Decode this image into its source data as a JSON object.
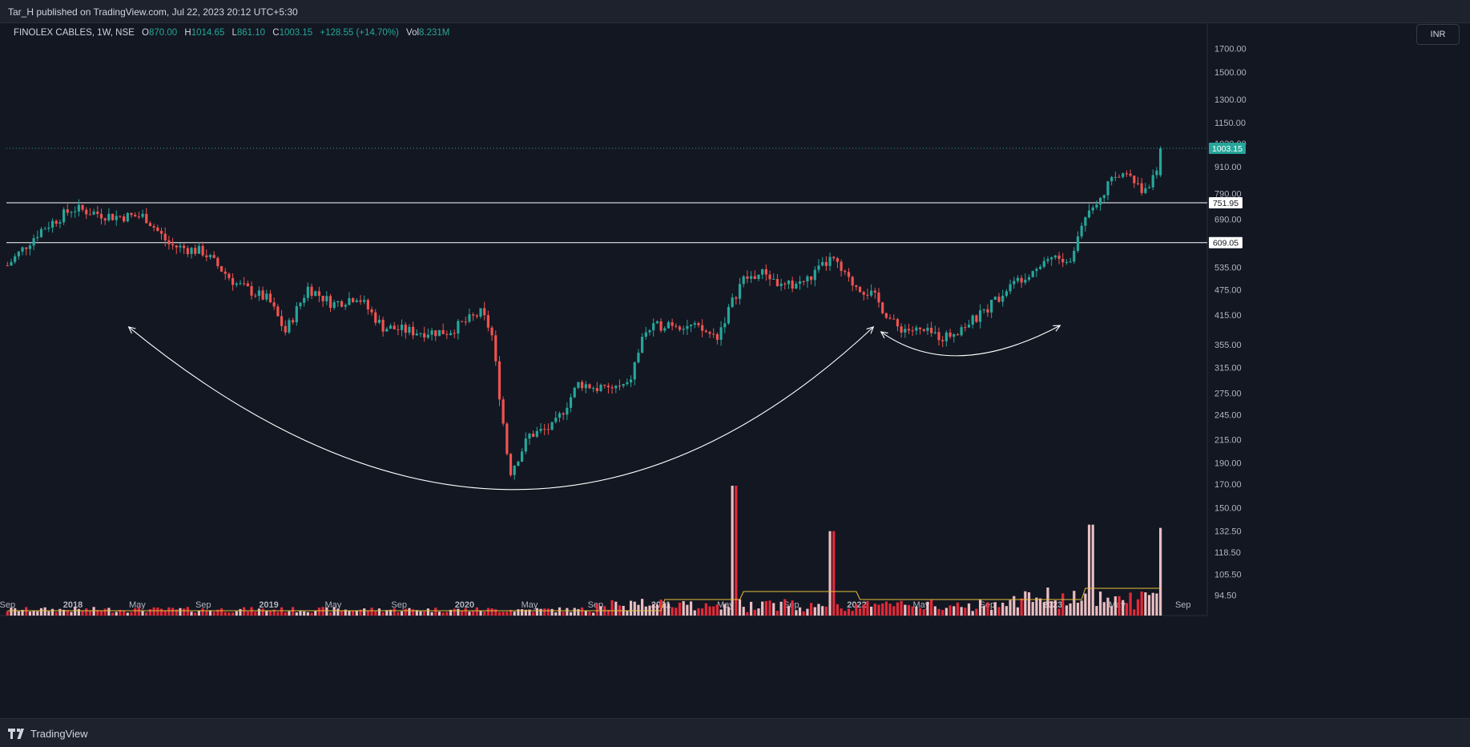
{
  "header": {
    "publish_line": "Tar_H published on TradingView.com, Jul 22, 2023 20:12 UTC+5:30"
  },
  "legend": {
    "symbol": "FINOLEX CABLES, 1W, NSE",
    "open_label": "O",
    "open": "870.00",
    "high_label": "H",
    "high": "1014.65",
    "low_label": "L",
    "low": "861.10",
    "close_label": "C",
    "close": "1003.15",
    "change": "+128.55 (+14.70%)",
    "vol_label": "Vol",
    "vol": "8.231M"
  },
  "currency_button": "INR",
  "footer": {
    "brand": "TradingView",
    "logo_icon": "tradingview-logo-icon"
  },
  "colors": {
    "background": "#131722",
    "up": "#26a69a",
    "down": "#ef5350",
    "volume_up": "#f6c7cb",
    "volume_down": "#ef2b3a",
    "volume_ma": "#e6c23a",
    "annotation": "#ffffff"
  },
  "chart_data": {
    "type": "candlestick",
    "scale": "log",
    "grid": false,
    "y_ticks": [
      "1700.00",
      "1500.00",
      "1300.00",
      "1150.00",
      "1030.00",
      "910.00",
      "790.00",
      "690.00",
      "535.00",
      "475.00",
      "415.00",
      "355.00",
      "315.00",
      "275.00",
      "245.00",
      "215.00",
      "190.00",
      "170.00",
      "150.00",
      "132.50",
      "118.50",
      "105.50",
      "94.50"
    ],
    "x_ticks": [
      "Sep",
      "2018",
      "May",
      "Sep",
      "2019",
      "May",
      "Sep",
      "2020",
      "May",
      "Sep",
      "2021",
      "May",
      "Sep",
      "2022",
      "May",
      "Sep",
      "2023",
      "May",
      "Sep"
    ],
    "levels": [
      {
        "name": "resistance-upper",
        "value": 751.95,
        "label": "751.95"
      },
      {
        "name": "resistance-lower",
        "value": 609.05,
        "label": "609.05"
      }
    ],
    "last_price": {
      "value": 1003.15,
      "label": "1003.15"
    },
    "price_anchors": [
      [
        "2017-09-01",
        540
      ],
      [
        "2017-11-01",
        650
      ],
      [
        "2018-01-01",
        730
      ],
      [
        "2018-03-15",
        700
      ],
      [
        "2018-05-15",
        700
      ],
      [
        "2018-07-01",
        600
      ],
      [
        "2018-09-01",
        580
      ],
      [
        "2018-11-01",
        490
      ],
      [
        "2019-01-01",
        450
      ],
      [
        "2019-02-01",
        380
      ],
      [
        "2019-03-15",
        480
      ],
      [
        "2019-05-01",
        440
      ],
      [
        "2019-06-15",
        460
      ],
      [
        "2019-08-01",
        390
      ],
      [
        "2019-10-01",
        380
      ],
      [
        "2019-12-01",
        380
      ],
      [
        "2020-02-01",
        420
      ],
      [
        "2020-02-20",
        380
      ],
      [
        "2020-03-25",
        180
      ],
      [
        "2020-05-01",
        220
      ],
      [
        "2020-06-15",
        230
      ],
      [
        "2020-08-01",
        290
      ],
      [
        "2020-09-15",
        280
      ],
      [
        "2020-11-01",
        285
      ],
      [
        "2020-12-01",
        380
      ],
      [
        "2021-01-15",
        400
      ],
      [
        "2021-03-01",
        390
      ],
      [
        "2021-04-15",
        370
      ],
      [
        "2021-06-01",
        500
      ],
      [
        "2021-07-15",
        520
      ],
      [
        "2021-08-15",
        480
      ],
      [
        "2021-10-01",
        500
      ],
      [
        "2021-11-15",
        560
      ],
      [
        "2021-12-15",
        500
      ],
      [
        "2022-02-01",
        460
      ],
      [
        "2022-03-15",
        390
      ],
      [
        "2022-05-01",
        380
      ],
      [
        "2022-06-15",
        370
      ],
      [
        "2022-08-15",
        410
      ],
      [
        "2022-10-01",
        470
      ],
      [
        "2022-11-15",
        520
      ],
      [
        "2023-01-01",
        570
      ],
      [
        "2023-02-01",
        540
      ],
      [
        "2023-03-01",
        700
      ],
      [
        "2023-04-15",
        830
      ],
      [
        "2023-05-25",
        900
      ],
      [
        "2023-06-15",
        790
      ],
      [
        "2023-07-15",
        875
      ],
      [
        "2023-07-22",
        1003
      ]
    ],
    "volume_spikes": [
      [
        "2021-05-15",
        200
      ],
      [
        "2021-11-15",
        130
      ],
      [
        "2023-03-15",
        140
      ],
      [
        "2023-07-22",
        135
      ]
    ],
    "annotations": [
      {
        "type": "curved-arrow",
        "name": "large-rounding-bottom",
        "from": [
          "2018-04-15",
          390
        ],
        "via": [
          "2020-04-01",
          165
        ],
        "to": [
          "2022-02-01",
          390
        ],
        "arrowheads": "both"
      },
      {
        "type": "curved-arrow",
        "name": "small-rounding-bottom",
        "from": [
          "2022-02-15",
          380
        ],
        "via": [
          "2022-07-15",
          335
        ],
        "to": [
          "2023-01-15",
          393
        ],
        "arrowheads": "both"
      }
    ]
  }
}
